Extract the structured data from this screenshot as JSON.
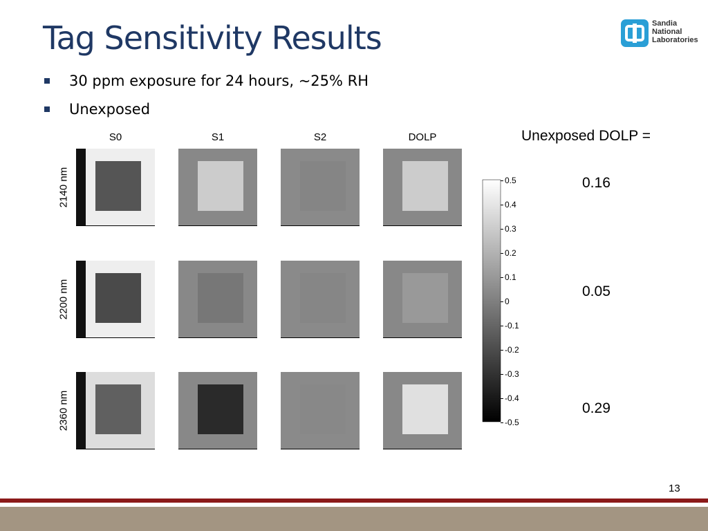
{
  "header": {
    "title": "Tag Sensitivity Results",
    "logo": [
      "Sandia",
      "National",
      "Laboratories"
    ]
  },
  "bullets": [
    "30 ppm exposure for 24 hours, ~25% RH",
    "Unexposed"
  ],
  "figure": {
    "columns": [
      "S0",
      "S1",
      "S2",
      "DOLP"
    ],
    "rows": [
      "2140 nm",
      "2200 nm",
      "2360 nm"
    ],
    "colorbar_ticks": [
      0.5,
      0.4,
      0.3,
      0.2,
      0.1,
      0,
      -0.1,
      -0.2,
      -0.3,
      -0.4,
      -0.5
    ]
  },
  "dolp": {
    "heading": "Unexposed DOLP =",
    "values": [
      0.16,
      0.05,
      0.29
    ]
  },
  "footer": {
    "page": 13
  }
}
